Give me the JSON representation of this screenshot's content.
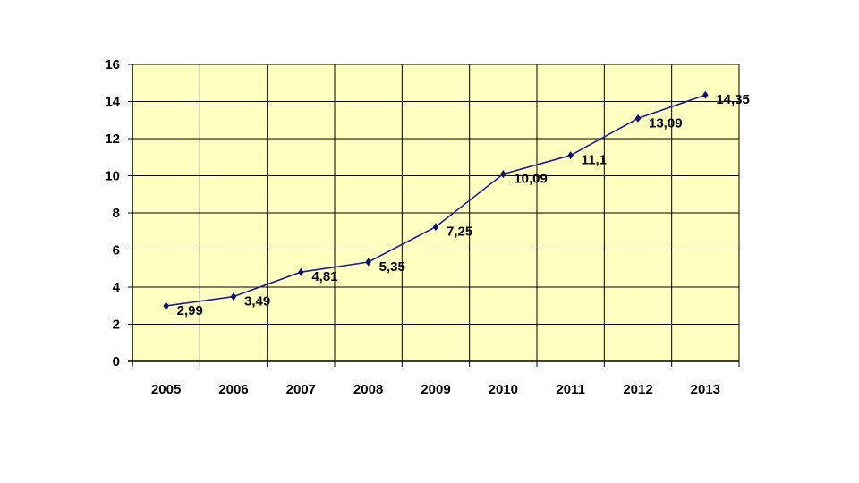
{
  "chart_data": {
    "type": "line",
    "title": "",
    "xlabel": "",
    "ylabel": "",
    "categories": [
      "2005",
      "2006",
      "2007",
      "2008",
      "2009",
      "2010",
      "2011",
      "2012",
      "2013"
    ],
    "series": [
      {
        "values": [
          2.99,
          3.49,
          4.81,
          5.35,
          7.25,
          10.09,
          11.1,
          13.09,
          14.35
        ],
        "labels": [
          "2,99",
          "3,49",
          "4,81",
          "5,35",
          "7,25",
          "10,09",
          "11,1",
          "13,09",
          "14,35"
        ]
      }
    ],
    "ylim": [
      0,
      16
    ],
    "yticks": [
      0,
      2,
      4,
      6,
      8,
      10,
      12,
      14,
      16
    ],
    "grid": true,
    "legend": "none",
    "colors": {
      "plot_background": "#FFFFC0",
      "grid": "#000000",
      "line": "#1F1F8C",
      "marker": "#0A0A6E"
    }
  }
}
